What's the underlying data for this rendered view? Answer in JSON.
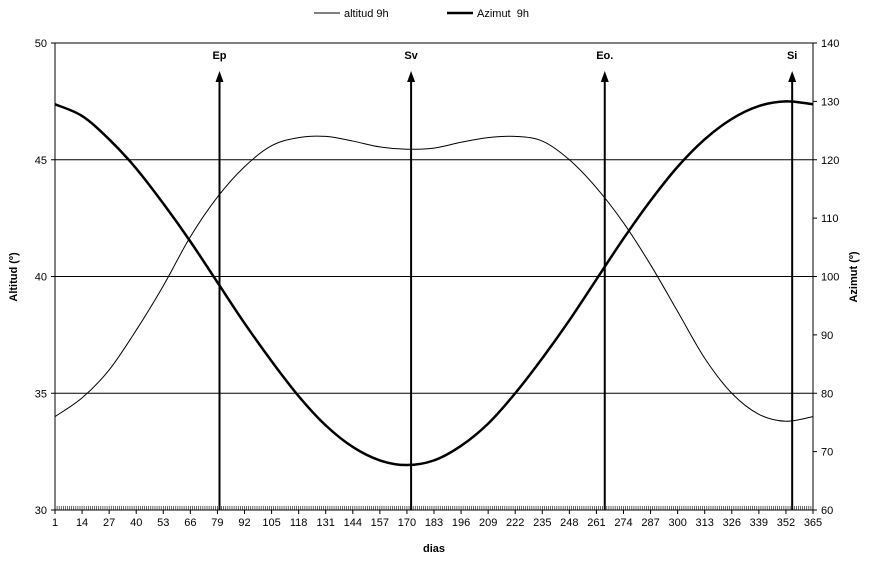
{
  "chart_data": {
    "type": "line",
    "xlabel": "dias",
    "ylabel_left": "Altitud (º)",
    "ylabel_right": "Azimut (º)",
    "xlim": [
      1,
      365
    ],
    "ylim_left": [
      30,
      50
    ],
    "ylim_right": [
      60,
      140
    ],
    "yticks_left": [
      30,
      35,
      40,
      45,
      50
    ],
    "yticks_right": [
      60,
      70,
      80,
      90,
      100,
      110,
      120,
      130,
      140
    ],
    "xticks": [
      1,
      14,
      27,
      40,
      53,
      66,
      79,
      92,
      105,
      118,
      131,
      144,
      157,
      170,
      183,
      196,
      209,
      222,
      235,
      248,
      261,
      274,
      287,
      300,
      313,
      326,
      339,
      352,
      365
    ],
    "grid": "horizontal",
    "legend": "top-center",
    "series": [
      {
        "name": "altitud 9h",
        "axis": "left",
        "color": "#000000",
        "style": "thin",
        "points": [
          [
            1,
            34.0
          ],
          [
            14,
            34.8
          ],
          [
            27,
            36.0
          ],
          [
            40,
            37.7
          ],
          [
            53,
            39.6
          ],
          [
            66,
            41.7
          ],
          [
            79,
            43.4
          ],
          [
            92,
            44.7
          ],
          [
            105,
            45.6
          ],
          [
            118,
            45.95
          ],
          [
            131,
            46.0
          ],
          [
            144,
            45.8
          ],
          [
            157,
            45.55
          ],
          [
            170,
            45.45
          ],
          [
            183,
            45.5
          ],
          [
            196,
            45.75
          ],
          [
            209,
            45.95
          ],
          [
            222,
            46.0
          ],
          [
            235,
            45.8
          ],
          [
            248,
            45.0
          ],
          [
            261,
            43.8
          ],
          [
            274,
            42.3
          ],
          [
            287,
            40.5
          ],
          [
            300,
            38.5
          ],
          [
            313,
            36.5
          ],
          [
            326,
            35.0
          ],
          [
            339,
            34.1
          ],
          [
            352,
            33.8
          ],
          [
            365,
            34.0
          ]
        ]
      },
      {
        "name": "Azimut  9h",
        "axis": "right",
        "color": "#000000",
        "style": "thick",
        "points": [
          [
            1,
            129.5
          ],
          [
            14,
            127.5
          ],
          [
            27,
            123.5
          ],
          [
            40,
            118.5
          ],
          [
            53,
            112.5
          ],
          [
            66,
            106.0
          ],
          [
            79,
            99.0
          ],
          [
            92,
            92.0
          ],
          [
            105,
            85.5
          ],
          [
            118,
            79.5
          ],
          [
            131,
            74.5
          ],
          [
            144,
            70.8
          ],
          [
            157,
            68.5
          ],
          [
            170,
            67.7
          ],
          [
            183,
            68.5
          ],
          [
            196,
            71.0
          ],
          [
            209,
            74.8
          ],
          [
            222,
            80.0
          ],
          [
            235,
            86.0
          ],
          [
            248,
            92.5
          ],
          [
            261,
            99.5
          ],
          [
            274,
            106.5
          ],
          [
            287,
            113.0
          ],
          [
            300,
            118.8
          ],
          [
            313,
            123.5
          ],
          [
            326,
            127.0
          ],
          [
            339,
            129.2
          ],
          [
            352,
            130.0
          ],
          [
            365,
            129.5
          ]
        ]
      }
    ],
    "markers": [
      {
        "label": "Ep",
        "x": 80
      },
      {
        "label": "Sv",
        "x": 172
      },
      {
        "label": "Eo.",
        "x": 265
      },
      {
        "label": "Si",
        "x": 355
      }
    ]
  }
}
